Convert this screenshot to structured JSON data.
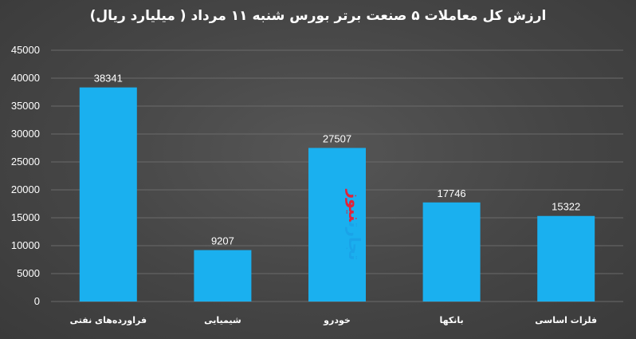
{
  "chart_data": {
    "type": "bar",
    "title": "ارزش کل معاملات ۵ صنعت برتر بورس شنبه ۱۱ مرداد ( میلیارد ریال)",
    "categories": [
      "فراورده‌های نفتی",
      "شیمیایی",
      "خودرو",
      "بانکها",
      "فلزات اساسی"
    ],
    "values": [
      38341,
      9207,
      27507,
      17746,
      15322
    ],
    "data_labels": [
      "38341",
      "9207",
      "27507",
      "17746",
      "15322"
    ],
    "ylim": [
      0,
      45000
    ],
    "yticks": [
      "0",
      "5000",
      "10000",
      "15000",
      "20000",
      "25000",
      "30000",
      "35000",
      "40000",
      "45000"
    ],
    "grid": true,
    "bar_color": "#1ab0ef",
    "background_color": "#4a4a4a"
  },
  "watermark": {
    "part1": "تجارت",
    "part2": "نیوز",
    "color1": "#1aa3e8",
    "color2": "#e0233a"
  }
}
